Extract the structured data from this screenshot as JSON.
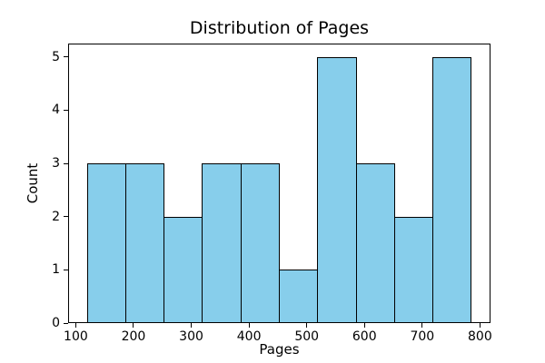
{
  "chart_data": {
    "type": "bar",
    "subtype": "histogram",
    "title": "Distribution of Pages",
    "xlabel": "Pages",
    "ylabel": "Count",
    "bin_edges": [
      120,
      186.5,
      253,
      319.5,
      386,
      452.5,
      519,
      585.5,
      652,
      718.5,
      785
    ],
    "counts": [
      3,
      3,
      2,
      3,
      3,
      1,
      5,
      3,
      2,
      5
    ],
    "xticks": [
      100,
      200,
      300,
      400,
      500,
      600,
      700,
      800
    ],
    "yticks": [
      0,
      1,
      2,
      3,
      4,
      5
    ],
    "xlim": [
      86.75,
      818.25
    ],
    "ylim": [
      0,
      5.25
    ],
    "grid": false,
    "legend": null,
    "bar_fill_color": "#87CEEB",
    "bar_edge_color": "#000000",
    "axis_color": "#000000",
    "background_color": "#ffffff"
  }
}
